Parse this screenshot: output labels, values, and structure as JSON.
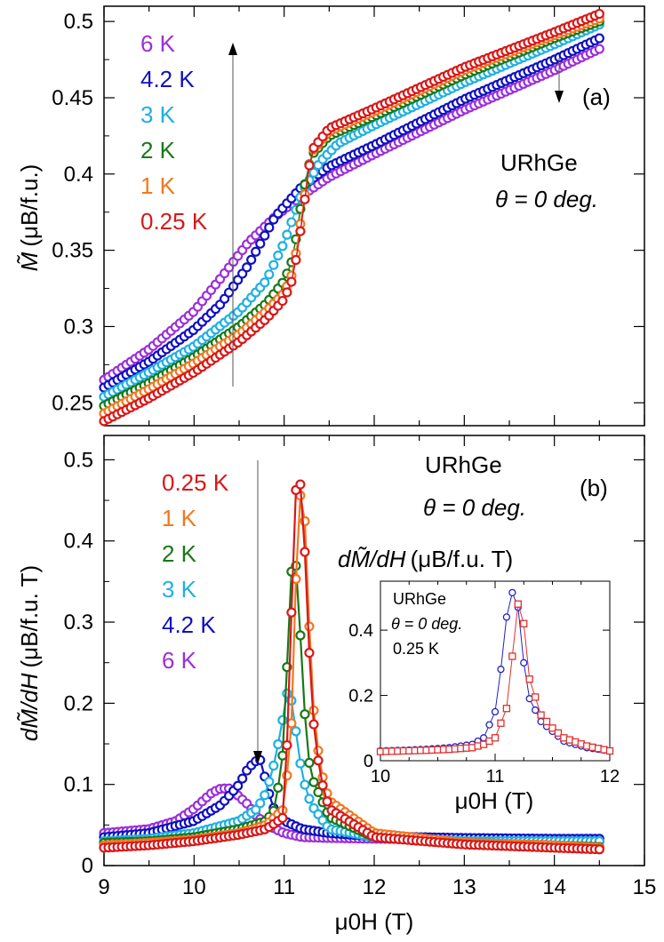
{
  "chart_data": [
    {
      "type": "scatter",
      "panel_label": "(a)",
      "ylabel_main": "M̃",
      "ylabel_units": "(μB/f.u.)",
      "xlim": [
        9,
        15
      ],
      "ylim": [
        0.235,
        0.51
      ],
      "yticks": [
        "0.25",
        "0.3",
        "0.35",
        "0.4",
        "0.45",
        "0.5"
      ],
      "yticks_values": [
        0.25,
        0.3,
        0.35,
        0.4,
        0.45,
        0.5
      ],
      "annotations": [
        "URhGe",
        "θ = 0 deg."
      ],
      "legend": [
        "6 K",
        "4.2 K",
        "3 K",
        "2 K",
        "1 K",
        "0.25 K"
      ],
      "series": [
        {
          "name": "6 K",
          "color": "#9b30d9",
          "x": [
            9.0,
            9.5,
            10.0,
            10.3,
            10.6,
            10.9,
            11.2,
            11.5,
            12.0,
            13.0,
            14.0,
            14.5
          ],
          "y": [
            0.265,
            0.285,
            0.31,
            0.332,
            0.355,
            0.372,
            0.386,
            0.398,
            0.413,
            0.442,
            0.468,
            0.482
          ]
        },
        {
          "name": "4.2 K",
          "color": "#1010c0",
          "x": [
            9.0,
            9.5,
            10.0,
            10.3,
            10.6,
            10.9,
            11.2,
            11.5,
            12.0,
            13.0,
            14.0,
            14.5
          ],
          "y": [
            0.26,
            0.277,
            0.298,
            0.315,
            0.34,
            0.372,
            0.392,
            0.405,
            0.419,
            0.449,
            0.475,
            0.489
          ]
        },
        {
          "name": "3 K",
          "color": "#20b0e0",
          "x": [
            9.0,
            9.5,
            10.0,
            10.5,
            10.8,
            11.0,
            11.2,
            11.4,
            11.6,
            12.0,
            13.0,
            14.0,
            14.5
          ],
          "y": [
            0.254,
            0.27,
            0.287,
            0.31,
            0.33,
            0.355,
            0.388,
            0.408,
            0.42,
            0.432,
            0.46,
            0.485,
            0.498
          ]
        },
        {
          "name": "2 K",
          "color": "#187818",
          "x": [
            9.0,
            9.5,
            10.0,
            10.5,
            10.8,
            11.0,
            11.1,
            11.2,
            11.3,
            11.5,
            12.0,
            13.0,
            14.0,
            14.5
          ],
          "y": [
            0.248,
            0.263,
            0.28,
            0.3,
            0.315,
            0.33,
            0.345,
            0.385,
            0.412,
            0.425,
            0.438,
            0.465,
            0.489,
            0.5
          ]
        },
        {
          "name": "1 K",
          "color": "#f07820",
          "x": [
            9.0,
            9.5,
            10.0,
            10.5,
            10.8,
            11.0,
            11.1,
            11.2,
            11.3,
            11.5,
            12.0,
            13.0,
            14.0,
            14.5
          ],
          "y": [
            0.243,
            0.259,
            0.276,
            0.295,
            0.31,
            0.322,
            0.336,
            0.375,
            0.414,
            0.428,
            0.441,
            0.468,
            0.491,
            0.502
          ]
        },
        {
          "name": "0.25 K",
          "color": "#d81818",
          "x": [
            9.0,
            9.5,
            10.0,
            10.5,
            10.8,
            11.0,
            11.1,
            11.2,
            11.3,
            11.5,
            12.0,
            13.0,
            14.0,
            14.5
          ],
          "y": [
            0.238,
            0.253,
            0.27,
            0.29,
            0.305,
            0.318,
            0.332,
            0.37,
            0.415,
            0.43,
            0.443,
            0.47,
            0.493,
            0.505
          ]
        }
      ]
    },
    {
      "type": "line",
      "panel_label": "(b)",
      "xlabel": "μ0H (T)",
      "ylabel_main": "dM̃/dH",
      "ylabel_units": "(μB/f.u. T)",
      "xlim": [
        9,
        15
      ],
      "ylim": [
        0,
        0.53
      ],
      "xticks": [
        "9",
        "10",
        "11",
        "12",
        "13",
        "14",
        "15"
      ],
      "xticks_values": [
        9,
        10,
        11,
        12,
        13,
        14,
        15
      ],
      "yticks": [
        "0",
        "0.1",
        "0.2",
        "0.3",
        "0.4",
        "0.5"
      ],
      "yticks_values": [
        0,
        0.1,
        0.2,
        0.3,
        0.4,
        0.5
      ],
      "annotations": [
        "URhGe",
        "θ = 0 deg."
      ],
      "legend": [
        "0.25 K",
        "1 K",
        "2 K",
        "3 K",
        "4.2 K",
        "6 K"
      ],
      "series": [
        {
          "name": "6 K",
          "color": "#9b30d9",
          "x": [
            9.0,
            9.5,
            9.8,
            10.0,
            10.2,
            10.3,
            10.4,
            10.6,
            10.7,
            10.9,
            11.0,
            11.2,
            11.5,
            12.0,
            13.0,
            14.0,
            14.5
          ],
          "y": [
            0.04,
            0.045,
            0.055,
            0.07,
            0.09,
            0.095,
            0.095,
            0.075,
            0.06,
            0.045,
            0.04,
            0.035,
            0.034,
            0.033,
            0.032,
            0.031,
            0.03
          ]
        },
        {
          "name": "4.2 K",
          "color": "#1010c0",
          "x": [
            9.0,
            9.5,
            10.0,
            10.3,
            10.5,
            10.6,
            10.7,
            10.75,
            10.8,
            10.9,
            11.0,
            11.2,
            11.5,
            12.0,
            13.0,
            14.0,
            14.5
          ],
          "y": [
            0.035,
            0.04,
            0.055,
            0.075,
            0.1,
            0.12,
            0.13,
            0.13,
            0.1,
            0.065,
            0.055,
            0.045,
            0.04,
            0.036,
            0.034,
            0.033,
            0.033
          ]
        },
        {
          "name": "3 K",
          "color": "#20b0e0",
          "x": [
            9.0,
            9.5,
            10.0,
            10.5,
            10.7,
            10.8,
            10.9,
            11.0,
            11.05,
            11.1,
            11.2,
            11.3,
            11.5,
            12.0,
            13.0,
            14.0,
            14.5
          ],
          "y": [
            0.03,
            0.033,
            0.04,
            0.055,
            0.07,
            0.09,
            0.13,
            0.19,
            0.225,
            0.19,
            0.11,
            0.075,
            0.045,
            0.035,
            0.03,
            0.03,
            0.03
          ]
        },
        {
          "name": "2 K",
          "color": "#187818",
          "x": [
            9.0,
            9.5,
            10.0,
            10.5,
            10.8,
            10.9,
            11.0,
            11.05,
            11.1,
            11.15,
            11.2,
            11.25,
            11.3,
            11.5,
            12.0,
            13.0,
            14.0,
            14.5
          ],
          "y": [
            0.028,
            0.03,
            0.035,
            0.045,
            0.055,
            0.07,
            0.15,
            0.3,
            0.4,
            0.35,
            0.24,
            0.15,
            0.11,
            0.06,
            0.035,
            0.028,
            0.025,
            0.023
          ]
        },
        {
          "name": "1 K",
          "color": "#f07820",
          "x": [
            9.0,
            9.5,
            10.0,
            10.5,
            10.8,
            11.0,
            11.1,
            11.15,
            11.2,
            11.25,
            11.3,
            11.4,
            11.5,
            12.0,
            13.0,
            14.0,
            14.5
          ],
          "y": [
            0.025,
            0.028,
            0.032,
            0.04,
            0.05,
            0.07,
            0.2,
            0.45,
            0.46,
            0.4,
            0.22,
            0.12,
            0.08,
            0.04,
            0.028,
            0.025,
            0.022
          ]
        },
        {
          "name": "0.25 K",
          "color": "#d81818",
          "x": [
            9.0,
            9.5,
            10.0,
            10.5,
            10.8,
            11.0,
            11.05,
            11.1,
            11.15,
            11.2,
            11.25,
            11.3,
            11.4,
            11.5,
            12.0,
            13.0,
            14.0,
            14.5
          ],
          "y": [
            0.022,
            0.025,
            0.03,
            0.038,
            0.045,
            0.06,
            0.2,
            0.38,
            0.515,
            0.44,
            0.35,
            0.2,
            0.11,
            0.07,
            0.035,
            0.026,
            0.022,
            0.02
          ]
        }
      ]
    },
    {
      "type": "line",
      "inset": true,
      "title_main": "dM̃/dH",
      "title_units": "(μB/f.u. T)",
      "xlabel": "μ0H (T)",
      "xlim": [
        10,
        12
      ],
      "ylim": [
        0,
        0.55
      ],
      "xticks": [
        "10",
        "11",
        "12"
      ],
      "xticks_values": [
        10,
        11,
        12
      ],
      "yticks": [
        "0",
        "0.2",
        "0.4"
      ],
      "yticks_values": [
        0,
        0.2,
        0.4
      ],
      "annotations": [
        "URhGe",
        "θ = 0 deg.",
        "0.25 K"
      ],
      "series": [
        {
          "name": "blue",
          "color": "#2020c8",
          "marker": "circle",
          "x": [
            10.0,
            10.2,
            10.4,
            10.6,
            10.8,
            10.9,
            11.0,
            11.05,
            11.1,
            11.15,
            11.2,
            11.25,
            11.3,
            11.4,
            11.5,
            11.6,
            11.8,
            12.0
          ],
          "y": [
            0.03,
            0.032,
            0.035,
            0.04,
            0.05,
            0.07,
            0.15,
            0.28,
            0.44,
            0.515,
            0.47,
            0.3,
            0.19,
            0.12,
            0.09,
            0.06,
            0.04,
            0.03
          ]
        },
        {
          "name": "red",
          "color": "#e03030",
          "marker": "square",
          "x": [
            10.0,
            10.2,
            10.4,
            10.6,
            10.8,
            10.9,
            11.0,
            11.1,
            11.15,
            11.2,
            11.25,
            11.3,
            11.4,
            11.5,
            11.6,
            11.8,
            12.0
          ],
          "y": [
            0.028,
            0.03,
            0.032,
            0.035,
            0.04,
            0.05,
            0.07,
            0.16,
            0.32,
            0.48,
            0.42,
            0.25,
            0.14,
            0.1,
            0.07,
            0.045,
            0.03
          ]
        }
      ]
    }
  ]
}
